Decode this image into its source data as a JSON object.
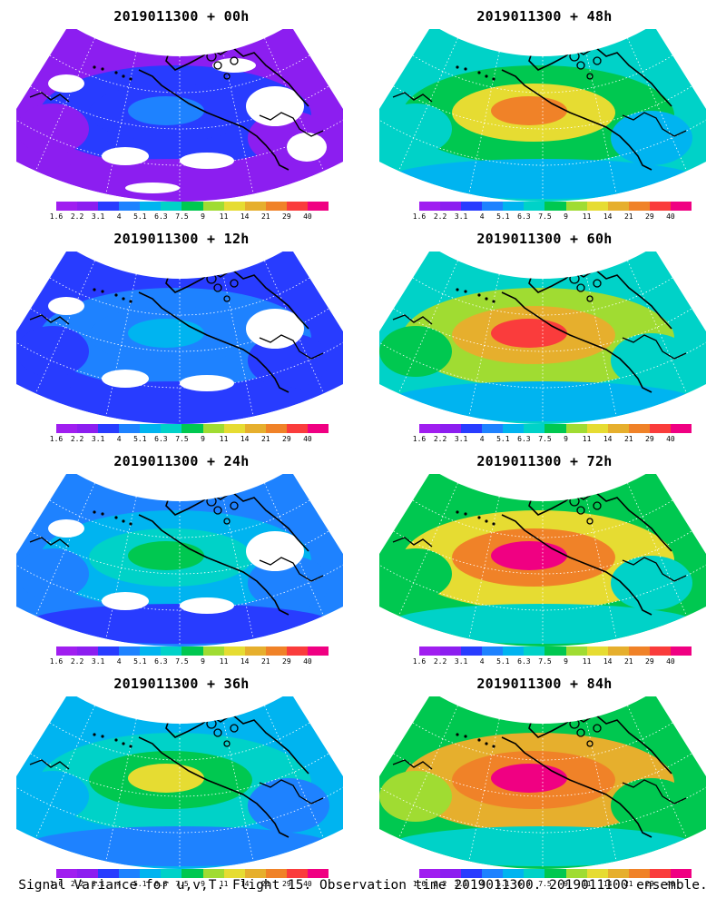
{
  "panels": [
    {
      "title": "2019011300 + 00h",
      "level": 0.18
    },
    {
      "title": "2019011300 + 48h",
      "level": 0.72
    },
    {
      "title": "2019011300 + 12h",
      "level": 0.3
    },
    {
      "title": "2019011300 + 60h",
      "level": 0.8
    },
    {
      "title": "2019011300 + 24h",
      "level": 0.45
    },
    {
      "title": "2019011300 + 72h",
      "level": 0.88
    },
    {
      "title": "2019011300 + 36h",
      "level": 0.58
    },
    {
      "title": "2019011300 + 84h",
      "level": 0.96
    }
  ],
  "colorbar": {
    "labels": [
      "1.6",
      "2.2",
      "3.1",
      "4",
      "5.1",
      "6.3",
      "7.5",
      "9",
      "11",
      "14",
      "21",
      "29",
      "40"
    ],
    "colors": [
      "#a01ef0",
      "#8c1ef0",
      "#283cff",
      "#1e82ff",
      "#00b4f0",
      "#00d2c8",
      "#00c850",
      "#a0dc32",
      "#e6dc32",
      "#e6af2d",
      "#f08228",
      "#fa3c3c",
      "#f00082"
    ]
  },
  "caption": "Signal Variance for u,v,T. Flight 15. Observation time 2019011300. 2019011100 ensemble."
}
